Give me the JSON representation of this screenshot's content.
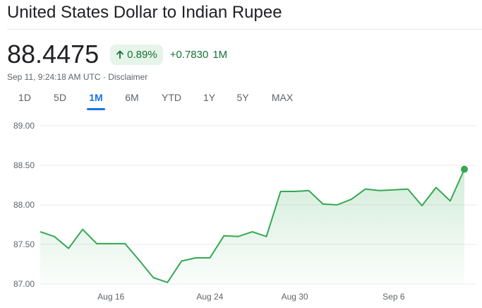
{
  "header": {
    "title": "United States Dollar to Indian Rupee"
  },
  "quote": {
    "price": "88.4475",
    "change_percent": "0.89%",
    "change_abs": "+0.7830",
    "change_period": "1M",
    "timestamp": "Sep 11, 9:24:18 AM UTC",
    "separator": "·",
    "disclaimer": "Disclaimer",
    "trend_color": "#137333"
  },
  "tabs": [
    {
      "label": "1D"
    },
    {
      "label": "5D"
    },
    {
      "label": "1M",
      "active": true
    },
    {
      "label": "6M"
    },
    {
      "label": "YTD"
    },
    {
      "label": "1Y"
    },
    {
      "label": "5Y"
    },
    {
      "label": "MAX"
    }
  ],
  "chart_data": {
    "type": "area",
    "title": "",
    "xlabel": "",
    "ylabel": "",
    "ylim": [
      87.0,
      89.0
    ],
    "yticks": [
      "89.00",
      "88.50",
      "88.00",
      "87.50",
      "87.00"
    ],
    "xticks": [
      "Aug 16",
      "Aug 24",
      "Aug 30",
      "Sep 6"
    ],
    "grid": true,
    "line_color": "#34a853",
    "series": [
      {
        "values": [
          87.66,
          87.6,
          87.45,
          87.69,
          87.51,
          87.51,
          87.51,
          87.3,
          87.08,
          87.02,
          87.29,
          87.33,
          87.33,
          87.61,
          87.6,
          87.66,
          87.6,
          88.17,
          88.17,
          88.18,
          88.01,
          88.0,
          88.07,
          88.2,
          88.18,
          88.19,
          88.2,
          87.99,
          88.22,
          88.05,
          88.45
        ]
      }
    ]
  }
}
